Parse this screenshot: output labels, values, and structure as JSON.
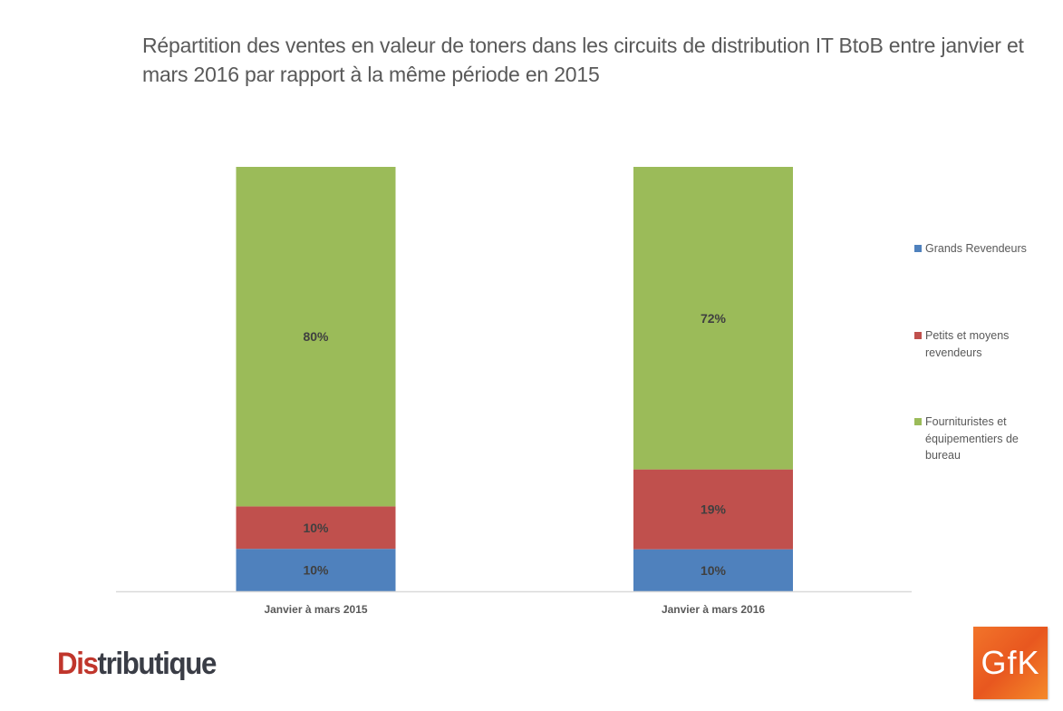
{
  "chart_data": {
    "type": "bar",
    "stacked": true,
    "normalized": true,
    "title": "Répartition des ventes en valeur de toners dans les circuits de distribution IT BtoB entre janvier et mars 2016 par rapport à la même période en 2015",
    "xlabel": "",
    "ylabel": "",
    "ylim": [
      0,
      100
    ],
    "grid": false,
    "legend_position": "right",
    "categories": [
      "Janvier à mars 2015",
      "Janvier à mars 2016"
    ],
    "series": [
      {
        "name": "Grands Revendeurs",
        "color": "#4f81bd",
        "values": [
          10,
          10
        ],
        "labels": [
          "10%",
          "10%"
        ]
      },
      {
        "name": "Petits et moyens revendeurs",
        "color": "#c0504d",
        "values": [
          10,
          19
        ],
        "labels": [
          "10%",
          "19%"
        ]
      },
      {
        "name": "Fournituristes et équipementiers de bureau",
        "color": "#9bbb59",
        "values": [
          80,
          72
        ],
        "labels": [
          "80%",
          "72%"
        ]
      }
    ]
  },
  "legend": {
    "items": [
      {
        "label_lines": [
          "Grands Revendeurs"
        ],
        "color": "#4f81bd"
      },
      {
        "label_lines": [
          "Petits et moyens",
          "revendeurs"
        ],
        "color": "#c0504d"
      },
      {
        "label_lines": [
          "Fournituristes et",
          "équipementiers de",
          "bureau"
        ],
        "color": "#9bbb59"
      }
    ]
  },
  "logos": {
    "distributique": {
      "part1": "Dis",
      "part2": "tributique"
    },
    "gfk": "GfK"
  }
}
